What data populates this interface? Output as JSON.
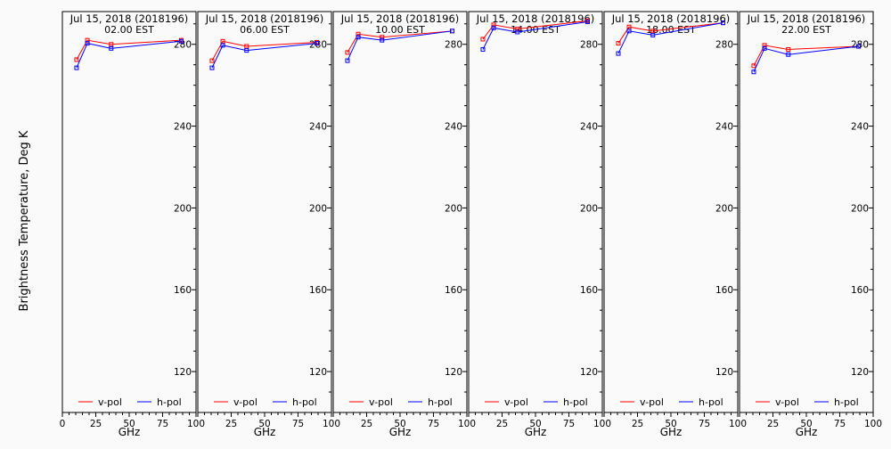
{
  "figure": {
    "ylabel": "Brightness Temperature, Deg K",
    "xlabel": "GHz",
    "xticks": [
      0,
      25,
      50,
      75,
      100
    ],
    "yticks": [
      120,
      160,
      200,
      240,
      280
    ],
    "xlim": [
      0,
      100
    ],
    "ylim": [
      100,
      296
    ],
    "legend": {
      "vpol_label": "v-pol",
      "hpol_label": "h-pol",
      "placement": "bottom"
    },
    "colors": {
      "vpol": "#ff0000",
      "hpol": "#0000ff"
    }
  },
  "chart_data": [
    {
      "type": "line",
      "title": "Jul 15, 2018 (2018196)",
      "subtitle": "02.00 EST",
      "x": [
        10.65,
        18.7,
        36.5,
        89.0
      ],
      "series": [
        {
          "name": "v-pol",
          "values": [
            272.5,
            282.0,
            280.0,
            282.0
          ]
        },
        {
          "name": "h-pol",
          "values": [
            268.5,
            280.5,
            278.0,
            281.5
          ]
        }
      ]
    },
    {
      "type": "line",
      "title": "Jul 15, 2018 (2018196)",
      "subtitle": "06.00 EST",
      "x": [
        10.65,
        18.7,
        36.5,
        89.0
      ],
      "series": [
        {
          "name": "v-pol",
          "values": [
            272.0,
            281.5,
            279.0,
            281.0
          ]
        },
        {
          "name": "h-pol",
          "values": [
            268.5,
            279.5,
            277.0,
            280.5
          ]
        }
      ]
    },
    {
      "type": "line",
      "title": "Jul 15, 2018 (2018196)",
      "subtitle": "10.00 EST",
      "x": [
        10.65,
        18.7,
        36.5,
        89.0
      ],
      "series": [
        {
          "name": "v-pol",
          "values": [
            276.0,
            285.0,
            283.5,
            286.5
          ]
        },
        {
          "name": "h-pol",
          "values": [
            272.0,
            283.5,
            282.0,
            286.5
          ]
        }
      ]
    },
    {
      "type": "line",
      "title": "Jul 15, 2018 (2018196)",
      "subtitle": "14.00 EST",
      "x": [
        10.65,
        18.7,
        36.5,
        89.0
      ],
      "series": [
        {
          "name": "v-pol",
          "values": [
            282.5,
            289.5,
            287.5,
            291.5
          ]
        },
        {
          "name": "h-pol",
          "values": [
            277.5,
            288.0,
            286.0,
            291.0
          ]
        }
      ]
    },
    {
      "type": "line",
      "title": "Jul 15, 2018 (2018196)",
      "subtitle": "18.00 EST",
      "x": [
        10.65,
        18.7,
        36.5,
        89.0
      ],
      "series": [
        {
          "name": "v-pol",
          "values": [
            280.5,
            288.5,
            286.5,
            290.5
          ]
        },
        {
          "name": "h-pol",
          "values": [
            275.5,
            286.5,
            284.5,
            290.5
          ]
        }
      ]
    },
    {
      "type": "line",
      "title": "Jul 15, 2018 (2018196)",
      "subtitle": "22.00 EST",
      "x": [
        10.65,
        18.7,
        36.5,
        89.0
      ],
      "series": [
        {
          "name": "v-pol",
          "values": [
            269.5,
            279.5,
            277.5,
            279.0
          ]
        },
        {
          "name": "h-pol",
          "values": [
            266.5,
            278.0,
            275.0,
            279.0
          ]
        }
      ]
    }
  ]
}
